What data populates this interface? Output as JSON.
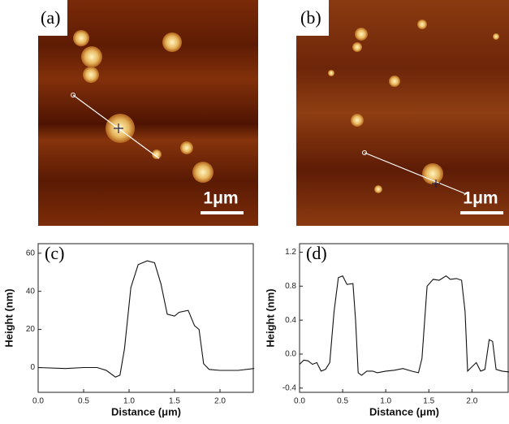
{
  "images": [
    {
      "label": "(a)",
      "scale_bar": "1μm"
    },
    {
      "label": "(b)",
      "scale_bar": "1μm"
    }
  ],
  "chart_data": [
    {
      "type": "line",
      "panel_label": "(c)",
      "x_label": "Distance (μm)",
      "y_label": "Height (nm)",
      "color": "#111111",
      "xlim": [
        0,
        2.375
      ],
      "ylim": [
        -13,
        65
      ],
      "xticks": [
        {
          "value": 0,
          "label": "0.0"
        },
        0.5,
        {
          "value": 1,
          "label": "1.0"
        },
        1.5,
        {
          "value": 2,
          "label": "2.0"
        }
      ],
      "yticks": [
        0,
        20,
        40,
        60
      ],
      "x": [
        0,
        0.3,
        0.5,
        0.65,
        0.75,
        0.85,
        0.9,
        0.95,
        1.02,
        1.1,
        1.2,
        1.28,
        1.35,
        1.42,
        1.5,
        1.55,
        1.65,
        1.72,
        1.77,
        1.82,
        1.88,
        2.0,
        2.2,
        2.375
      ],
      "y": [
        0,
        -0.5,
        0,
        0,
        -1.5,
        -5,
        -4,
        10,
        42,
        54,
        56,
        55,
        44,
        28,
        27,
        29,
        30,
        22,
        20,
        2,
        -1,
        -1.5,
        -1.5,
        -0.5
      ]
    },
    {
      "type": "line",
      "panel_label": "(d)",
      "x_label": "Distance (μm)",
      "y_label": "Height (nm)",
      "color": "#111111",
      "xlim": [
        0,
        2.43
      ],
      "ylim": [
        -0.45,
        1.3
      ],
      "xticks": [
        {
          "value": 0,
          "label": "0.0"
        },
        0.5,
        {
          "value": 1,
          "label": "1.0"
        },
        1.5,
        {
          "value": 2,
          "label": "2.0"
        }
      ],
      "yticks": [
        -0.4,
        {
          "value": 0,
          "label": "0.0"
        },
        0.4,
        0.8,
        1.2
      ],
      "x": [
        0,
        0.05,
        0.1,
        0.15,
        0.2,
        0.25,
        0.3,
        0.35,
        0.4,
        0.45,
        0.5,
        0.55,
        0.62,
        0.65,
        0.68,
        0.72,
        0.78,
        0.85,
        0.9,
        1.0,
        1.1,
        1.2,
        1.3,
        1.38,
        1.42,
        1.48,
        1.55,
        1.62,
        1.7,
        1.75,
        1.82,
        1.88,
        1.92,
        1.95,
        2.0,
        2.05,
        2.1,
        2.15,
        2.2,
        2.24,
        2.28,
        2.35,
        2.43
      ],
      "y": [
        -0.12,
        -0.07,
        -0.08,
        -0.12,
        -0.1,
        -0.2,
        -0.18,
        -0.1,
        0.5,
        0.9,
        0.92,
        0.82,
        0.83,
        0.4,
        -0.22,
        -0.25,
        -0.2,
        -0.2,
        -0.22,
        -0.2,
        -0.19,
        -0.17,
        -0.2,
        -0.22,
        -0.05,
        0.8,
        0.88,
        0.87,
        0.92,
        0.88,
        0.89,
        0.87,
        0.5,
        -0.2,
        -0.15,
        -0.1,
        -0.2,
        -0.18,
        0.17,
        0.15,
        -0.18,
        -0.2,
        -0.21
      ]
    }
  ]
}
